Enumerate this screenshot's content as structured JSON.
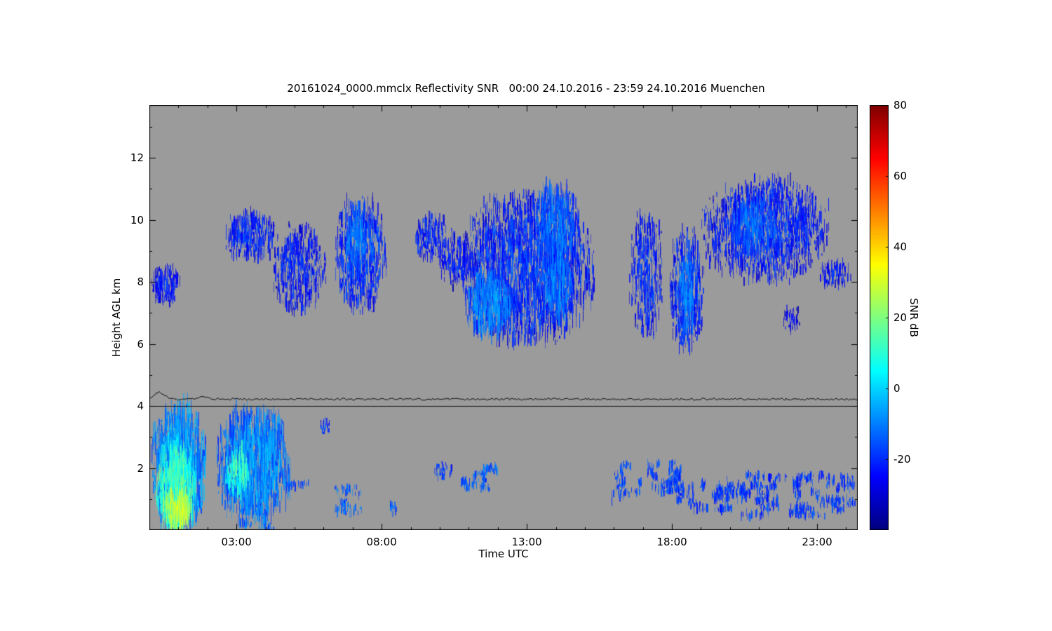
{
  "title": "20161024_0000.mmclx Reflectivity SNR   00:00 24.10.2016 - 23:59 24.10.2016 Muenchen",
  "chart_data": {
    "type": "heatmap",
    "xlabel": "Time UTC",
    "ylabel": "Height AGL km",
    "plot_bg": "#9b9b9b",
    "frame_color": "#000000",
    "x_range_hours": [
      0,
      24.4
    ],
    "y_range_km": [
      0,
      13.7
    ],
    "x_ticks": [
      {
        "hours": 3,
        "label": "03:00"
      },
      {
        "hours": 8,
        "label": "08:00"
      },
      {
        "hours": 13,
        "label": "13:00"
      },
      {
        "hours": 18,
        "label": "18:00"
      },
      {
        "hours": 23,
        "label": "23:00"
      }
    ],
    "x_minor_every_hours": 1,
    "y_ticks": [
      {
        "km": 2,
        "label": "2"
      },
      {
        "km": 4,
        "label": "4"
      },
      {
        "km": 6,
        "label": "6"
      },
      {
        "km": 8,
        "label": "8"
      },
      {
        "km": 10,
        "label": "10"
      },
      {
        "km": 12,
        "label": "12"
      }
    ],
    "y_minor_every_km": 1,
    "colorbar": {
      "label": "SNR dB",
      "colormap": "jet",
      "min": -40,
      "max": 80,
      "ticks": [
        80,
        60,
        40,
        20,
        0,
        -20
      ]
    },
    "reference_lines": [
      {
        "type": "flat",
        "height_km": 4.0
      },
      {
        "type": "noisy",
        "height_km": 4.22,
        "noise_km": 0.07,
        "bumps": [
          {
            "t": 0.35,
            "width": 0.25,
            "amp": 0.22
          },
          {
            "t": 1.9,
            "width": 0.2,
            "amp": 0.08
          }
        ]
      }
    ],
    "echo_regions": [
      {
        "t0": 0.05,
        "t1": 1.05,
        "h0": 7.3,
        "h1": 8.6,
        "snr": -22,
        "spread": 6,
        "density": 220,
        "streak": 14,
        "shape": "cloud"
      },
      {
        "t0": 2.55,
        "t1": 4.35,
        "h0": 8.7,
        "h1": 10.3,
        "snr": -20,
        "spread": 7,
        "density": 220,
        "streak": 16,
        "shape": "cloud"
      },
      {
        "t0": 4.2,
        "t1": 6.1,
        "h0": 7.0,
        "h1": 9.9,
        "snr": -21,
        "spread": 7,
        "density": 150,
        "streak": 18,
        "shape": "cloud"
      },
      {
        "t0": 6.35,
        "t1": 8.15,
        "h0": 7.0,
        "h1": 10.8,
        "snr": -18,
        "spread": 8,
        "density": 170,
        "streak": 20,
        "shape": "cloud"
      },
      {
        "t0": 6.7,
        "t1": 7.5,
        "h0": 8.3,
        "h1": 10.4,
        "snr": -10,
        "spread": 6,
        "density": 160,
        "streak": 22,
        "shape": "cloud"
      },
      {
        "t0": 9.1,
        "t1": 10.3,
        "h0": 8.7,
        "h1": 10.2,
        "snr": -20,
        "spread": 7,
        "density": 180,
        "streak": 16,
        "shape": "cloud"
      },
      {
        "t0": 9.9,
        "t1": 11.4,
        "h0": 7.8,
        "h1": 9.7,
        "snr": -22,
        "spread": 6,
        "density": 130,
        "streak": 16,
        "shape": "cloud"
      },
      {
        "t0": 10.6,
        "t1": 15.3,
        "h0": 6.0,
        "h1": 10.9,
        "snr": -19,
        "spread": 8,
        "density": 170,
        "streak": 22,
        "shape": "cloud"
      },
      {
        "t0": 10.9,
        "t1": 12.5,
        "h0": 6.2,
        "h1": 8.4,
        "snr": -8,
        "spread": 7,
        "density": 180,
        "streak": 30,
        "shape": "cloud"
      },
      {
        "t0": 13.2,
        "t1": 14.8,
        "h0": 8.5,
        "h1": 11.2,
        "snr": -12,
        "spread": 7,
        "density": 200,
        "streak": 24,
        "shape": "cloud"
      },
      {
        "t0": 13.5,
        "t1": 14.6,
        "h0": 6.6,
        "h1": 9.0,
        "snr": -10,
        "spread": 8,
        "density": 150,
        "streak": 30,
        "shape": "cloud"
      },
      {
        "t0": 16.5,
        "t1": 17.7,
        "h0": 6.2,
        "h1": 10.4,
        "snr": -20,
        "spread": 7,
        "density": 140,
        "streak": 20,
        "shape": "cloud"
      },
      {
        "t0": 17.9,
        "t1": 19.1,
        "h0": 5.8,
        "h1": 9.7,
        "snr": -18,
        "spread": 8,
        "density": 170,
        "streak": 22,
        "shape": "cloud"
      },
      {
        "t0": 18.2,
        "t1": 18.8,
        "h0": 6.3,
        "h1": 9.0,
        "snr": -9,
        "spread": 6,
        "density": 150,
        "streak": 26,
        "shape": "cloud"
      },
      {
        "t0": 19.0,
        "t1": 23.4,
        "h0": 8.0,
        "h1": 11.4,
        "snr": -20,
        "spread": 7,
        "density": 170,
        "streak": 18,
        "shape": "cloud"
      },
      {
        "t0": 19.9,
        "t1": 21.7,
        "h0": 8.8,
        "h1": 10.8,
        "snr": -13,
        "spread": 7,
        "density": 150,
        "streak": 20,
        "shape": "cloud"
      },
      {
        "t0": 21.8,
        "t1": 22.4,
        "h0": 6.4,
        "h1": 7.2,
        "snr": -24,
        "spread": 5,
        "density": 170,
        "streak": 12,
        "shape": "cloud"
      },
      {
        "t0": 23.0,
        "t1": 24.2,
        "h0": 7.8,
        "h1": 8.7,
        "snr": -23,
        "spread": 6,
        "density": 160,
        "streak": 12,
        "shape": "cloud"
      },
      {
        "t0": 0.05,
        "t1": 1.95,
        "h0": 0.0,
        "h1": 4.05,
        "snr": -5,
        "spread": 10,
        "density": 260,
        "streak": 34,
        "shape": "cloud"
      },
      {
        "t0": 0.2,
        "t1": 1.6,
        "h0": 0.0,
        "h1": 2.8,
        "snr": 14,
        "spread": 9,
        "density": 260,
        "streak": 30,
        "shape": "cloud"
      },
      {
        "t0": 0.45,
        "t1": 1.45,
        "h0": 0.0,
        "h1": 1.3,
        "snr": 30,
        "spread": 8,
        "density": 300,
        "streak": 26,
        "shape": "cloud"
      },
      {
        "t0": 2.3,
        "t1": 4.85,
        "h0": 0.2,
        "h1": 4.0,
        "snr": -8,
        "spread": 9,
        "density": 200,
        "streak": 34,
        "shape": "cloud"
      },
      {
        "t0": 2.55,
        "t1": 3.5,
        "h0": 1.2,
        "h1": 2.6,
        "snr": 12,
        "spread": 8,
        "density": 180,
        "streak": 26,
        "shape": "cloud"
      },
      {
        "t0": 2.9,
        "t1": 4.3,
        "h0": 0.0,
        "h1": 0.9,
        "snr": -12,
        "spread": 8,
        "density": 120,
        "streak": 12,
        "shape": "scatter"
      },
      {
        "t0": 4.7,
        "t1": 5.7,
        "h0": 1.25,
        "h1": 1.7,
        "snr": -18,
        "spread": 5,
        "density": 140,
        "streak": 8,
        "shape": "scatter"
      },
      {
        "t0": 5.85,
        "t1": 6.25,
        "h0": 3.0,
        "h1": 3.6,
        "snr": -16,
        "spread": 6,
        "density": 170,
        "streak": 8,
        "shape": "cloud"
      },
      {
        "t0": 6.2,
        "t1": 7.3,
        "h0": 0.5,
        "h1": 1.4,
        "snr": -14,
        "spread": 7,
        "density": 150,
        "streak": 10,
        "shape": "scatter"
      },
      {
        "t0": 8.2,
        "t1": 8.5,
        "h0": 0.5,
        "h1": 0.9,
        "snr": -10,
        "spread": 5,
        "density": 200,
        "streak": 8,
        "shape": "cloud"
      },
      {
        "t0": 9.75,
        "t1": 10.4,
        "h0": 1.6,
        "h1": 2.2,
        "snr": -17,
        "spread": 5,
        "density": 160,
        "streak": 8,
        "shape": "cloud"
      },
      {
        "t0": 10.7,
        "t1": 12.1,
        "h0": 1.3,
        "h1": 2.1,
        "snr": -14,
        "spread": 7,
        "density": 150,
        "streak": 10,
        "shape": "scatter"
      },
      {
        "t0": 15.9,
        "t1": 18.4,
        "h0": 0.7,
        "h1": 2.2,
        "snr": -18,
        "spread": 6,
        "density": 110,
        "streak": 10,
        "shape": "scatter"
      },
      {
        "t0": 18.5,
        "t1": 21.1,
        "h0": 0.6,
        "h1": 1.9,
        "snr": -19,
        "spread": 6,
        "density": 110,
        "streak": 10,
        "shape": "scatter"
      },
      {
        "t0": 20.3,
        "t1": 24.3,
        "h0": 0.4,
        "h1": 1.8,
        "snr": -19,
        "spread": 6,
        "density": 120,
        "streak": 10,
        "shape": "scatter"
      }
    ]
  }
}
